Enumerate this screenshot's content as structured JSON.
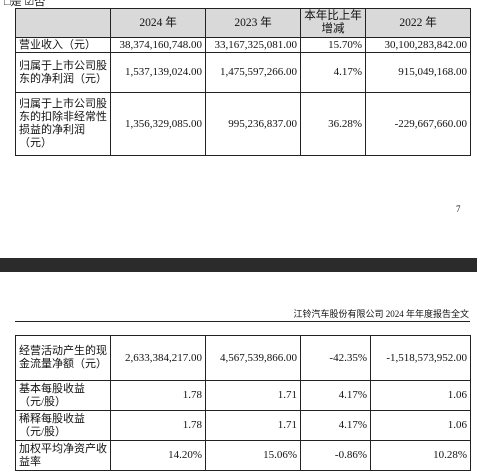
{
  "top_fragment": "□是 ☑否",
  "table_top": {
    "header": [
      "",
      "2024 年",
      "2023 年",
      "本年比上年增减",
      "2022 年"
    ],
    "rows": [
      [
        "营业收入（元）",
        "38,374,160,748.00",
        "33,167,325,081.00",
        "15.70%",
        "30,100,283,842.00"
      ],
      [
        "归属于上市公司股东的净利润（元）",
        "1,537,139,024.00",
        "1,475,597,266.00",
        "4.17%",
        "915,049,168.00"
      ],
      [
        "归属于上市公司股东的扣除非经常性损益的净利润（元）",
        "1,356,329,085.00",
        "995,236,837.00",
        "36.28%",
        "-229,667,660.00"
      ]
    ]
  },
  "page_number": "7",
  "running_header": "江铃汽车股份有限公司 2024 年年度报告全文",
  "table_bottom": {
    "rows": [
      [
        "经营活动产生的现金流量净额（元）",
        "2,633,384,217.00",
        "4,567,539,866.00",
        "-42.35%",
        "-1,518,573,952.00"
      ],
      [
        "基本每股收益（元/股）",
        "1.78",
        "1.71",
        "4.17%",
        "1.06"
      ],
      [
        "稀释每股收益（元/股）",
        "1.78",
        "1.71",
        "4.17%",
        "1.06"
      ],
      [
        "加权平均净资产收益率",
        "14.20%",
        "15.06%",
        "-0.86%",
        "10.28%"
      ]
    ]
  }
}
